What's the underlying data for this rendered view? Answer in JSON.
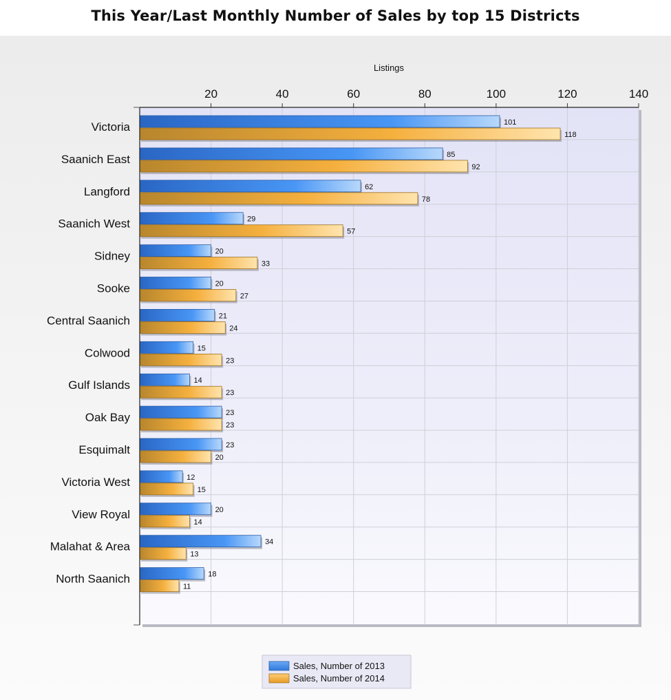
{
  "page": {
    "title": "This Year/Last Monthly Number of Sales by top 15 Districts"
  },
  "chart_data": {
    "type": "bar",
    "orientation": "horizontal",
    "title": "This Year/Last Monthly Number of Sales by top 15 Districts",
    "xlabel": "Listings",
    "ylabel": "",
    "xlim": [
      0,
      140
    ],
    "ticks": [
      20,
      40,
      60,
      80,
      100,
      120,
      140
    ],
    "grid": true,
    "legend_position": "bottom",
    "categories": [
      "Victoria",
      "Saanich East",
      "Langford",
      "Saanich West",
      "Sidney",
      "Sooke",
      "Central Saanich",
      "Colwood",
      "Gulf Islands",
      "Oak Bay",
      "Esquimalt",
      "Victoria West",
      "View Royal",
      "Malahat & Area",
      "North Saanich"
    ],
    "series": [
      {
        "name": "Sales, Number of 2013",
        "color": "#3f8ff0",
        "values": [
          101,
          85,
          62,
          29,
          20,
          20,
          21,
          15,
          14,
          23,
          23,
          12,
          20,
          34,
          18
        ]
      },
      {
        "name": "Sales, Number of 2014",
        "color": "#f5b13c",
        "values": [
          118,
          92,
          78,
          57,
          33,
          27,
          24,
          23,
          23,
          23,
          20,
          15,
          14,
          13,
          11
        ]
      }
    ]
  }
}
